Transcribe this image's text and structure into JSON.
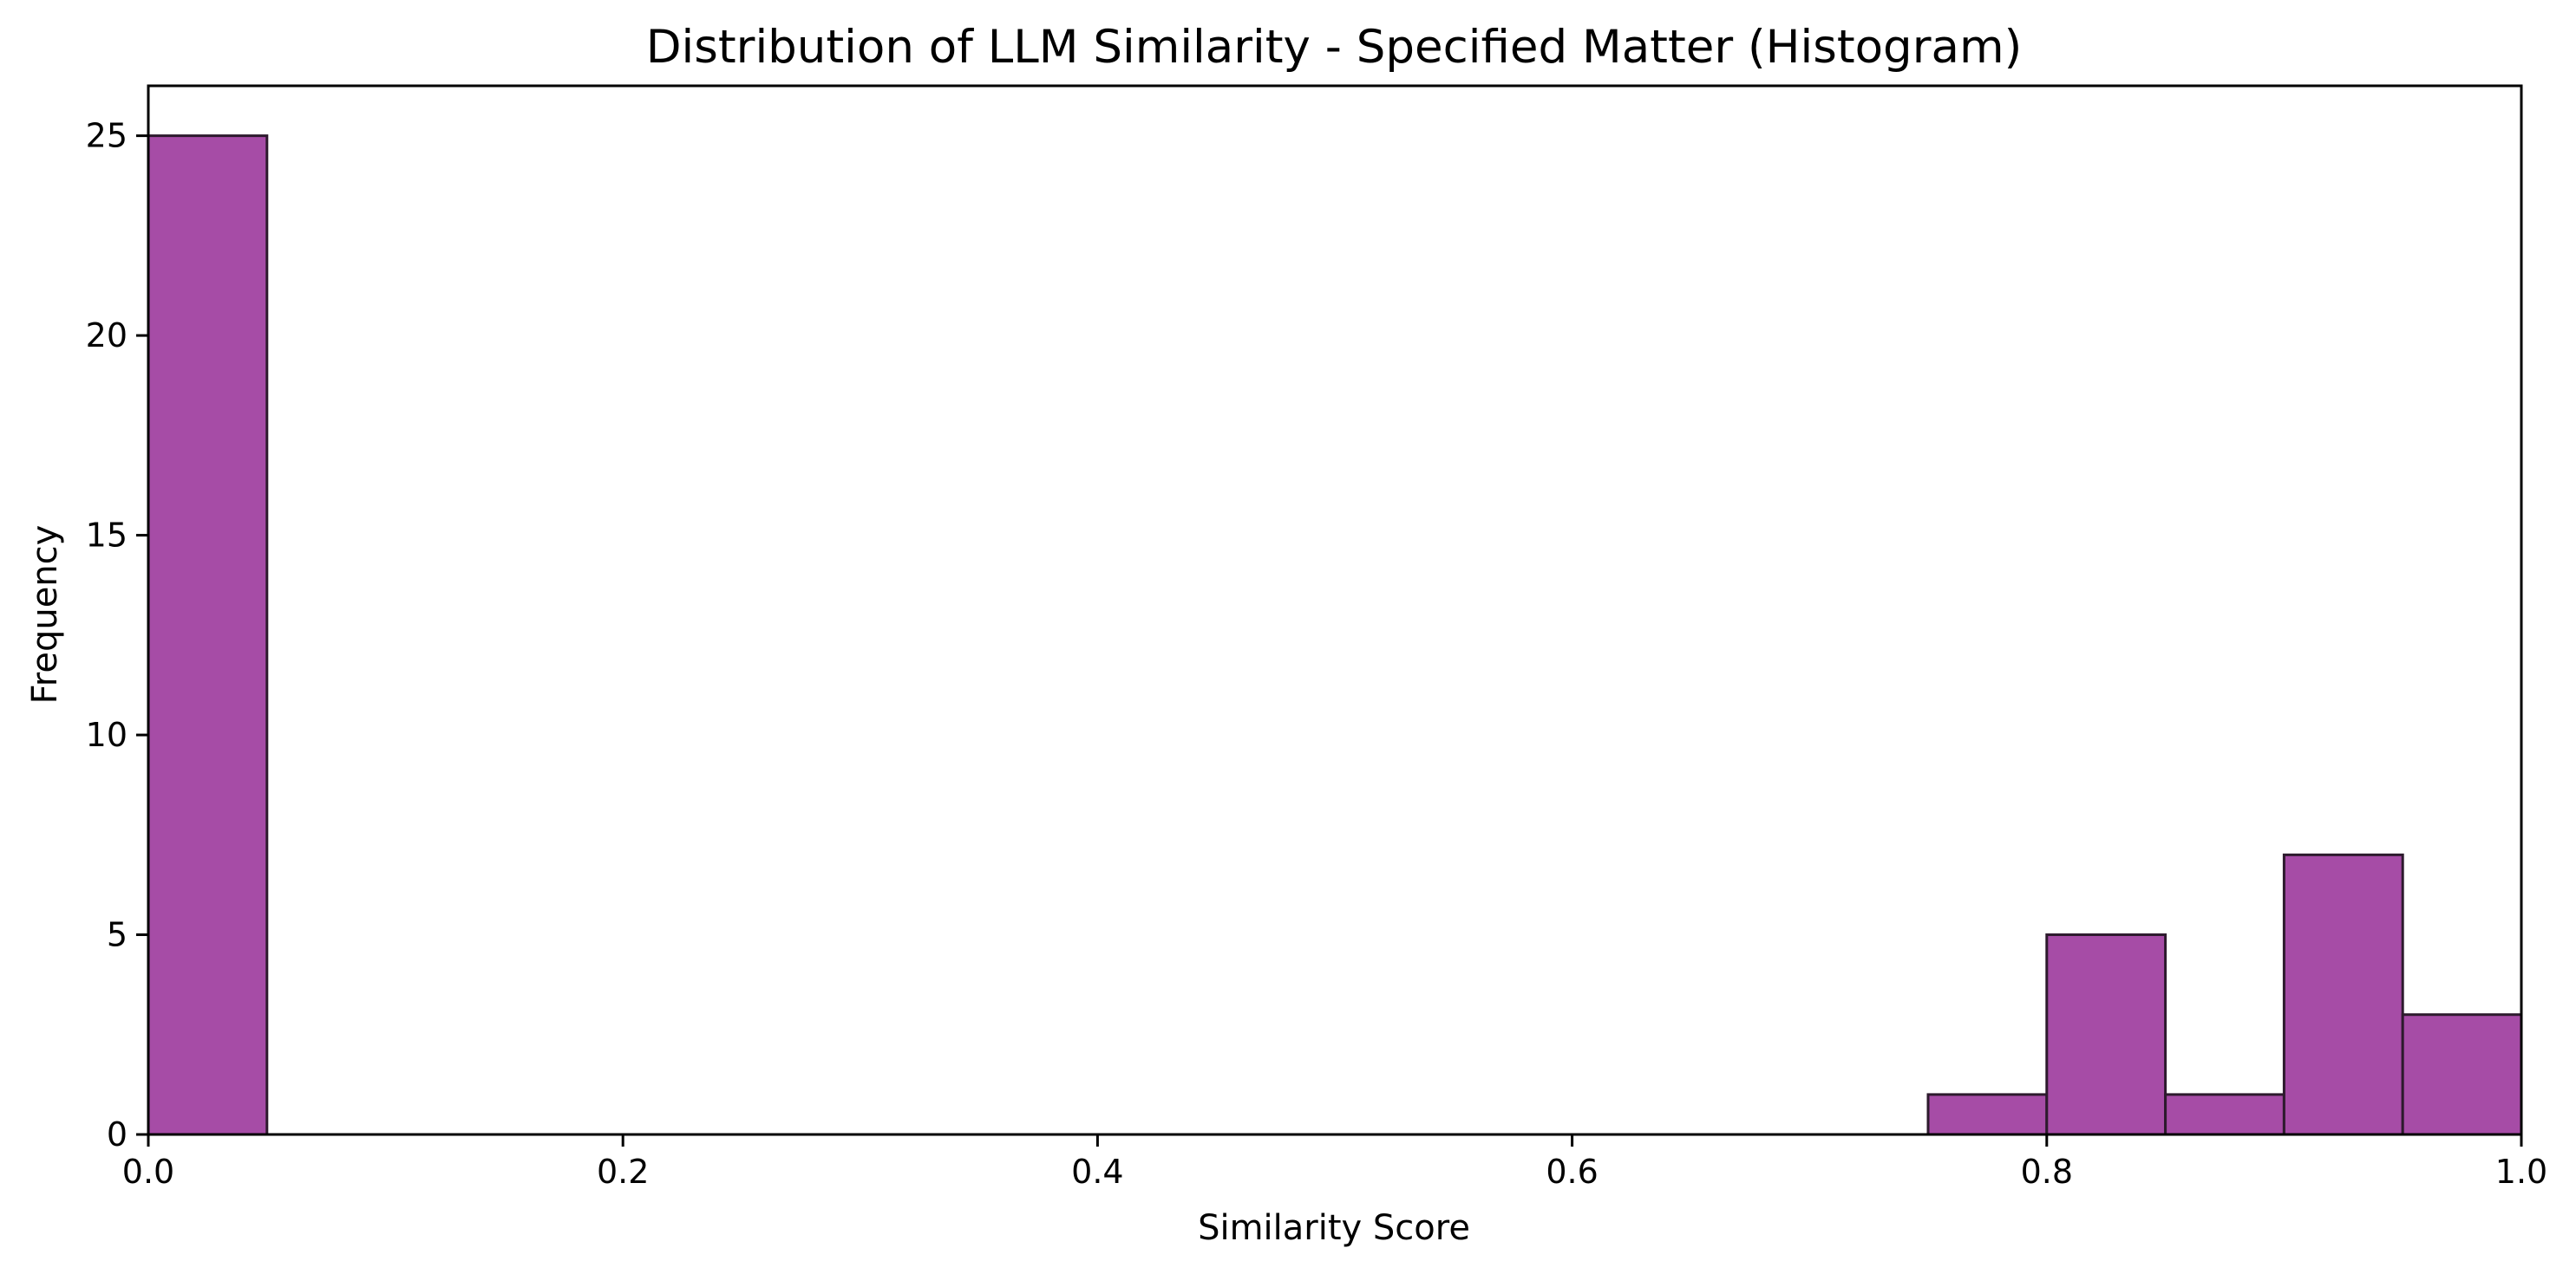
{
  "chart_data": {
    "type": "bar",
    "title": "Distribution of LLM Similarity - Specified Matter (Histogram)",
    "xlabel": "Similarity Score",
    "ylabel": "Frequency",
    "xlim": [
      0.0,
      1.0
    ],
    "ylim": [
      0,
      26.25
    ],
    "grid": false,
    "legend": "none",
    "xticks": [
      "0.0",
      "0.2",
      "0.4",
      "0.6",
      "0.8",
      "1.0"
    ],
    "yticks": [
      "0",
      "5",
      "10",
      "15",
      "20",
      "25"
    ],
    "bar_color": "#a64ca6",
    "edge_color": "#2d1a2d",
    "bins": [
      {
        "start": 0.0,
        "end": 0.05,
        "count": 25
      },
      {
        "start": 0.05,
        "end": 0.1,
        "count": 0
      },
      {
        "start": 0.1,
        "end": 0.15,
        "count": 0
      },
      {
        "start": 0.15,
        "end": 0.2,
        "count": 0
      },
      {
        "start": 0.2,
        "end": 0.25,
        "count": 0
      },
      {
        "start": 0.25,
        "end": 0.3,
        "count": 0
      },
      {
        "start": 0.3,
        "end": 0.35,
        "count": 0
      },
      {
        "start": 0.35,
        "end": 0.4,
        "count": 0
      },
      {
        "start": 0.4,
        "end": 0.45,
        "count": 0
      },
      {
        "start": 0.45,
        "end": 0.5,
        "count": 0
      },
      {
        "start": 0.5,
        "end": 0.55,
        "count": 0
      },
      {
        "start": 0.55,
        "end": 0.6,
        "count": 0
      },
      {
        "start": 0.6,
        "end": 0.65,
        "count": 0
      },
      {
        "start": 0.65,
        "end": 0.7,
        "count": 0
      },
      {
        "start": 0.7,
        "end": 0.75,
        "count": 0
      },
      {
        "start": 0.75,
        "end": 0.8,
        "count": 1
      },
      {
        "start": 0.8,
        "end": 0.85,
        "count": 5
      },
      {
        "start": 0.85,
        "end": 0.9,
        "count": 1
      },
      {
        "start": 0.9,
        "end": 0.95,
        "count": 7
      },
      {
        "start": 0.95,
        "end": 1.0,
        "count": 3
      }
    ]
  }
}
